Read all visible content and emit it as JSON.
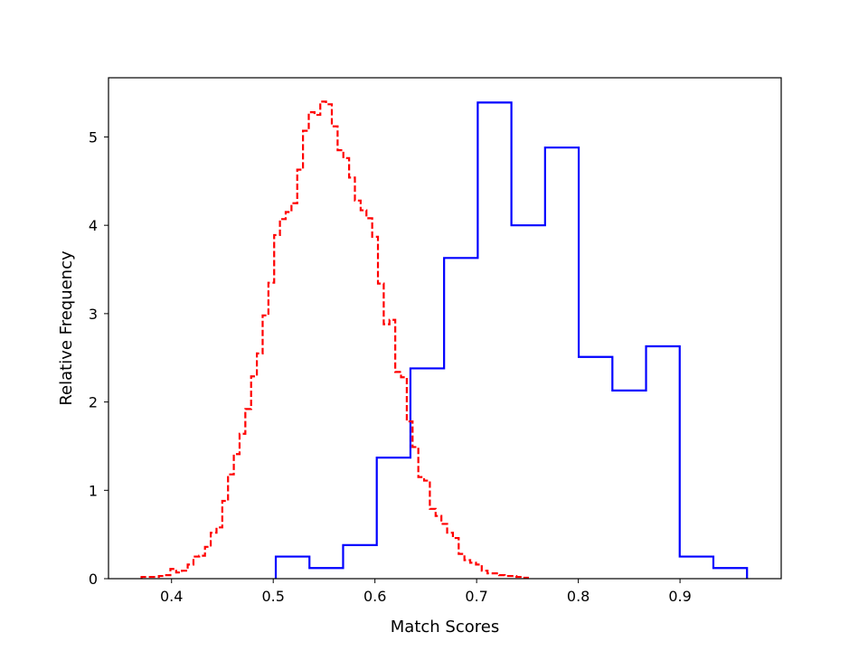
{
  "chart_data": {
    "type": "step-histogram",
    "xlabel": "Match Scores",
    "ylabel": "Relative Frequency",
    "xlim": [
      0.338,
      0.9995
    ],
    "ylim": [
      0,
      5.67
    ],
    "xticks": [
      0.4,
      0.5,
      0.6,
      0.7,
      0.8,
      0.9
    ],
    "yticks": [
      0,
      1,
      2,
      3,
      4,
      5
    ],
    "xtick_labels": [
      "0.4",
      "0.5",
      "0.6",
      "0.7",
      "0.8",
      "0.9"
    ],
    "ytick_labels": [
      "0",
      "1",
      "2",
      "3",
      "4",
      "5"
    ],
    "grid": false,
    "series": [
      {
        "color": "#0000ff",
        "linestyle": "solid",
        "bin_start": 0.5025,
        "bin_width": 0.0331,
        "values": [
          0.25,
          0.12,
          0.38,
          1.37,
          2.38,
          3.63,
          5.39,
          4.0,
          4.88,
          2.51,
          2.13,
          2.63,
          0.25,
          0.12
        ]
      },
      {
        "color": "#ff0000",
        "linestyle": "dashed",
        "bin_start": 0.3705,
        "bin_width": 0.00567,
        "values": [
          0.02,
          0.02,
          0.02,
          0.03,
          0.04,
          0.11,
          0.07,
          0.09,
          0.16,
          0.25,
          0.26,
          0.36,
          0.52,
          0.58,
          0.88,
          1.18,
          1.41,
          1.64,
          1.92,
          2.29,
          2.55,
          2.98,
          3.35,
          3.89,
          4.07,
          4.15,
          4.25,
          4.63,
          5.07,
          5.28,
          5.25,
          5.4,
          5.37,
          5.12,
          4.85,
          4.76,
          4.54,
          4.28,
          4.17,
          4.08,
          3.87,
          3.34,
          2.88,
          2.93,
          2.34,
          2.28,
          1.78,
          1.49,
          1.15,
          1.11,
          0.79,
          0.71,
          0.62,
          0.52,
          0.46,
          0.28,
          0.21,
          0.18,
          0.16,
          0.09,
          0.06,
          0.06,
          0.04,
          0.03,
          0.03,
          0.02,
          0.01
        ]
      }
    ]
  }
}
